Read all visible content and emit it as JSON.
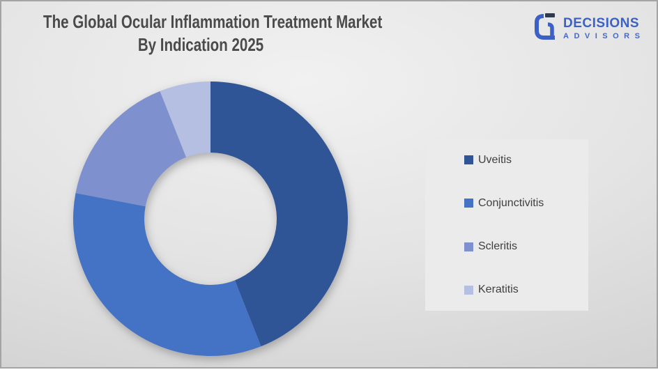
{
  "title": {
    "line1": "The Global Ocular Inflammation Treatment Market",
    "line2": "By Indication 2025"
  },
  "logo": {
    "wordmark": "DECISIONS",
    "subtext": "ADVISORS",
    "brand_color": "#3c61c6",
    "icon_dark_color": "#2e3a4e",
    "icon": "decisions-g-logo"
  },
  "chart_data": {
    "type": "pie",
    "subtype": "donut",
    "title": "The Global Ocular Inflammation Treatment Market By Indication 2025",
    "categories": [
      "Uveitis",
      "Conjunctivitis",
      "Scleritis",
      "Keratitis"
    ],
    "values": [
      44,
      34,
      16,
      6
    ],
    "values_note": "percent share, estimated from arc angles; no data labels shown in chart",
    "colors": [
      "#2F5597",
      "#4472C4",
      "#7E91CE",
      "#B4BFE2"
    ],
    "start_angle_deg": 0,
    "direction": "clockwise",
    "inner_radius_ratio": 0.48,
    "data_labels": false,
    "legend_position": "right",
    "legend_panel_bg": "#ebebeb"
  }
}
